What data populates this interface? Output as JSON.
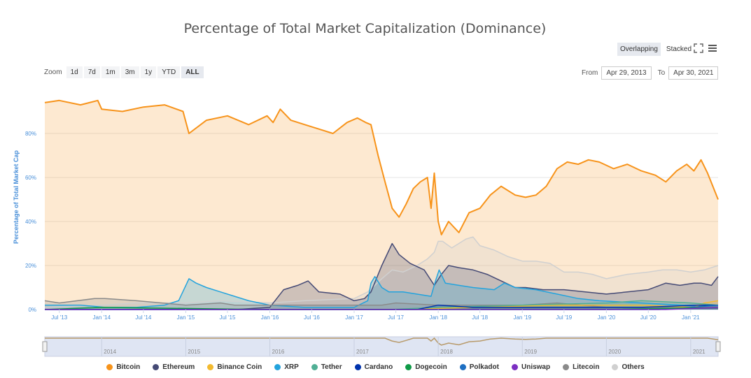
{
  "title": "Percentage of Total Market Capitalization (Dominance)",
  "view": {
    "overlapping": "Overlapping",
    "stacked": "Stacked"
  },
  "icons": {
    "fullscreen": "fullscreen-icon",
    "menu": "hamburger-menu-icon"
  },
  "zoom": {
    "label": "Zoom",
    "buttons": [
      "1d",
      "7d",
      "1m",
      "3m",
      "1y",
      "YTD",
      "ALL"
    ],
    "active": "ALL"
  },
  "range": {
    "from_label": "From",
    "from": "Apr 29, 2013",
    "to_label": "To",
    "to": "Apr 30, 2021"
  },
  "navigator": {
    "years": [
      "2014",
      "2015",
      "2016",
      "2017",
      "2018",
      "2019",
      "2020",
      "2021"
    ]
  },
  "chart_data": {
    "type": "area",
    "title": "Percentage of Total Market Capitalization (Dominance)",
    "ylabel": "Percentage of Total Market Cap",
    "ylim": [
      0,
      100
    ],
    "yticks": [
      "0%",
      "20%",
      "40%",
      "60%",
      "80%"
    ],
    "xlim": [
      "2013-04-29",
      "2021-04-30"
    ],
    "xticks": [
      "Jul '13",
      "Jan '14",
      "Jul '14",
      "Jan '15",
      "Jul '15",
      "Jan '16",
      "Jul '16",
      "Jan '17",
      "Jul '17",
      "Jan '18",
      "Jul '18",
      "Jan '19",
      "Jul '19",
      "Jan '20",
      "Jul '20",
      "Jan '21"
    ],
    "grid": true,
    "legend_position": "bottom",
    "series": [
      {
        "name": "Bitcoin",
        "color": "#f7931a",
        "x": [
          "2013-04-29",
          "2013-07-01",
          "2013-10-01",
          "2013-12-15",
          "2014-01-01",
          "2014-04-01",
          "2014-07-01",
          "2014-10-01",
          "2014-12-20",
          "2015-01-15",
          "2015-04-01",
          "2015-07-01",
          "2015-10-01",
          "2015-12-20",
          "2016-01-15",
          "2016-02-15",
          "2016-04-01",
          "2016-06-01",
          "2016-08-01",
          "2016-10-01",
          "2016-12-01",
          "2017-01-15",
          "2017-02-20",
          "2017-03-15",
          "2017-04-15",
          "2017-05-15",
          "2017-06-15",
          "2017-07-15",
          "2017-08-15",
          "2017-09-15",
          "2017-10-15",
          "2017-11-15",
          "2017-12-01",
          "2017-12-15",
          "2018-01-01",
          "2018-01-15",
          "2018-02-15",
          "2018-04-01",
          "2018-05-15",
          "2018-07-01",
          "2018-08-15",
          "2018-10-01",
          "2018-12-01",
          "2019-01-15",
          "2019-03-01",
          "2019-04-15",
          "2019-06-01",
          "2019-07-15",
          "2019-09-01",
          "2019-10-15",
          "2019-12-01",
          "2020-02-01",
          "2020-04-01",
          "2020-06-01",
          "2020-08-01",
          "2020-09-15",
          "2020-11-01",
          "2020-12-15",
          "2021-01-15",
          "2021-02-15",
          "2021-03-15",
          "2021-04-30"
        ],
        "values": [
          94,
          95,
          93,
          95,
          91,
          90,
          92,
          93,
          90,
          80,
          86,
          88,
          84,
          88,
          85,
          91,
          86,
          84,
          82,
          80,
          85,
          87,
          85,
          84,
          70,
          58,
          46,
          42,
          48,
          55,
          58,
          60,
          46,
          62,
          40,
          34,
          40,
          35,
          44,
          46,
          52,
          56,
          52,
          51,
          52,
          56,
          64,
          67,
          66,
          68,
          67,
          64,
          66,
          63,
          61,
          58,
          63,
          66,
          63,
          68,
          62,
          50
        ]
      },
      {
        "name": "Ethereum",
        "color": "#454a75",
        "x": [
          "2013-04-29",
          "2015-08-01",
          "2016-01-01",
          "2016-03-01",
          "2016-05-01",
          "2016-06-15",
          "2016-08-01",
          "2016-11-01",
          "2017-01-01",
          "2017-02-15",
          "2017-03-15",
          "2017-05-01",
          "2017-06-15",
          "2017-07-15",
          "2017-09-01",
          "2017-11-01",
          "2017-12-15",
          "2018-01-15",
          "2018-02-15",
          "2018-04-01",
          "2018-06-01",
          "2018-08-01",
          "2018-10-01",
          "2018-12-01",
          "2019-01-15",
          "2019-04-01",
          "2019-07-01",
          "2019-10-01",
          "2020-01-01",
          "2020-04-01",
          "2020-07-01",
          "2020-09-15",
          "2020-11-15",
          "2021-01-15",
          "2021-02-15",
          "2021-04-01",
          "2021-04-30"
        ],
        "values": [
          0,
          0,
          1,
          9,
          11,
          13,
          8,
          7,
          4,
          5,
          8,
          20,
          30,
          25,
          21,
          18,
          11,
          16,
          20,
          19,
          18,
          16,
          13,
          10,
          10,
          9,
          9,
          8,
          7,
          8,
          9,
          12,
          11,
          12,
          12,
          11,
          15
        ]
      },
      {
        "name": "Binance Coin",
        "color": "#f3ba2f",
        "x": [
          "2013-04-29",
          "2017-07-15",
          "2018-06-01",
          "2019-06-01",
          "2020-06-01",
          "2021-01-15",
          "2021-03-01",
          "2021-04-30"
        ],
        "values": [
          0,
          0,
          1,
          2,
          2,
          1,
          3,
          4
        ]
      },
      {
        "name": "XRP",
        "color": "#23a3dd",
        "x": [
          "2013-04-29",
          "2013-10-01",
          "2014-01-15",
          "2014-06-01",
          "2014-10-01",
          "2014-12-01",
          "2015-01-15",
          "2015-02-15",
          "2015-04-01",
          "2015-06-01",
          "2015-08-01",
          "2015-10-01",
          "2016-01-01",
          "2016-06-01",
          "2017-01-01",
          "2017-03-01",
          "2017-03-15",
          "2017-04-01",
          "2017-05-01",
          "2017-06-01",
          "2017-08-01",
          "2017-12-01",
          "2017-12-20",
          "2018-01-05",
          "2018-02-01",
          "2018-04-01",
          "2018-06-01",
          "2018-09-01",
          "2018-10-15",
          "2018-12-01",
          "2019-03-01",
          "2019-06-01",
          "2019-09-01",
          "2019-12-01",
          "2020-06-01",
          "2020-12-01",
          "2021-04-30"
        ],
        "values": [
          2,
          2,
          1,
          1,
          2,
          4,
          14,
          12,
          10,
          8,
          6,
          4,
          2,
          1,
          1,
          4,
          12,
          15,
          10,
          8,
          8,
          6,
          13,
          18,
          12,
          11,
          10,
          9,
          12,
          10,
          9,
          7,
          5,
          4,
          3,
          2,
          2
        ]
      },
      {
        "name": "Tether",
        "color": "#50af95",
        "x": [
          "2013-04-29",
          "2017-06-01",
          "2018-01-01",
          "2019-01-01",
          "2020-01-01",
          "2020-06-01",
          "2021-01-01",
          "2021-04-30"
        ],
        "values": [
          0,
          0,
          1,
          2,
          3,
          4,
          3,
          2
        ]
      },
      {
        "name": "Cardano",
        "color": "#0033ad",
        "x": [
          "2013-04-29",
          "2017-10-01",
          "2018-01-01",
          "2018-06-01",
          "2019-06-01",
          "2020-06-01",
          "2021-02-01",
          "2021-04-30"
        ],
        "values": [
          0,
          0,
          2,
          1,
          1,
          1,
          2,
          2
        ]
      },
      {
        "name": "Dogecoin",
        "color": "#0e9a47",
        "x": [
          "2013-04-29",
          "2014-01-01",
          "2016-01-01",
          "2018-01-01",
          "2020-01-01",
          "2021-04-30"
        ],
        "values": [
          0,
          1,
          0,
          0,
          0,
          1
        ]
      },
      {
        "name": "Polkadot",
        "color": "#1d6fc2",
        "x": [
          "2013-04-29",
          "2020-08-15",
          "2021-01-01",
          "2021-04-30"
        ],
        "values": [
          0,
          0,
          1,
          2
        ]
      },
      {
        "name": "Uniswap",
        "color": "#7b2fc2",
        "x": [
          "2013-04-29",
          "2020-09-15",
          "2021-04-30"
        ],
        "values": [
          0,
          0,
          1
        ]
      },
      {
        "name": "Litecoin",
        "color": "#8a8a8a",
        "x": [
          "2013-04-29",
          "2013-07-01",
          "2013-12-01",
          "2014-01-15",
          "2014-06-01",
          "2015-01-01",
          "2015-06-01",
          "2015-08-01",
          "2016-01-01",
          "2017-01-01",
          "2017-05-01",
          "2017-07-01",
          "2018-01-01",
          "2019-01-01",
          "2019-06-01",
          "2020-01-01",
          "2020-06-01",
          "2021-01-01",
          "2021-04-30"
        ],
        "values": [
          4,
          3,
          5,
          5,
          4,
          2,
          3,
          2,
          2,
          2,
          2,
          3,
          2,
          2,
          3,
          1,
          1,
          1,
          1
        ]
      },
      {
        "name": "Others",
        "color": "#d0d0d0",
        "x": [
          "2013-04-29",
          "2014-01-01",
          "2014-06-01",
          "2015-01-01",
          "2015-06-01",
          "2016-01-01",
          "2016-06-01",
          "2017-01-01",
          "2017-03-01",
          "2017-05-01",
          "2017-06-15",
          "2017-08-01",
          "2017-10-01",
          "2017-11-15",
          "2017-12-15",
          "2018-01-01",
          "2018-01-20",
          "2018-03-01",
          "2018-05-01",
          "2018-06-01",
          "2018-07-01",
          "2018-09-01",
          "2018-11-01",
          "2019-01-01",
          "2019-03-01",
          "2019-05-01",
          "2019-07-01",
          "2019-09-01",
          "2019-11-01",
          "2020-01-01",
          "2020-04-01",
          "2020-07-01",
          "2020-09-01",
          "2020-11-01",
          "2021-01-01",
          "2021-03-01",
          "2021-04-30"
        ],
        "values": [
          1,
          2,
          3,
          3,
          4,
          3,
          4,
          5,
          8,
          14,
          18,
          17,
          20,
          23,
          26,
          31,
          31,
          28,
          32,
          33,
          29,
          27,
          24,
          22,
          22,
          21,
          17,
          17,
          16,
          14,
          16,
          17,
          18,
          18,
          17,
          18,
          20
        ]
      }
    ]
  }
}
